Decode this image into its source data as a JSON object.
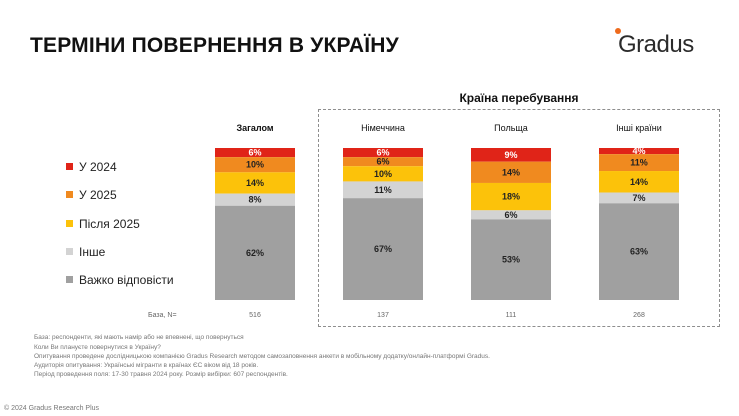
{
  "header": {
    "title": "ТЕРМІНИ ПОВЕРНЕННЯ В УКРАЇНУ",
    "logo_text": "Gradus"
  },
  "group_title": "Країна перебування",
  "legend": [
    {
      "label": "У 2024",
      "color": "#e02418"
    },
    {
      "label": "У 2025",
      "color": "#f08a1f"
    },
    {
      "label": "Після 2025",
      "color": "#fcc20a"
    },
    {
      "label": "Інше",
      "color": "#d3d3d3"
    },
    {
      "label": "Важко відповісти",
      "color": "#a0a0a0"
    }
  ],
  "chart_data": {
    "type": "bar",
    "stacked": true,
    "orientation": "vertical",
    "categories": [
      "Загалом",
      "Німеччина",
      "Польща",
      "Інші країни"
    ],
    "series": [
      {
        "name": "У 2024",
        "color": "#e02418",
        "values": [
          6,
          6,
          9,
          4
        ],
        "labels": [
          "6%",
          "6%",
          "9%",
          "4%"
        ]
      },
      {
        "name": "У 2025",
        "color": "#f08a1f",
        "values": [
          10,
          6,
          14,
          11
        ],
        "labels": [
          "10%",
          "6%",
          "14%",
          "11%"
        ]
      },
      {
        "name": "Після 2025",
        "color": "#fcc20a",
        "values": [
          14,
          10,
          18,
          14
        ],
        "labels": [
          "14%",
          "10%",
          "18%",
          "14%"
        ]
      },
      {
        "name": "Інше",
        "color": "#d3d3d3",
        "values": [
          8,
          11,
          6,
          7
        ],
        "labels": [
          "8%",
          "11%",
          "6%",
          "7%"
        ]
      },
      {
        "name": "Важко відповісти",
        "color": "#a0a0a0",
        "values": [
          62,
          67,
          53,
          63
        ],
        "labels": [
          "62%",
          "67%",
          "53%",
          "63%"
        ]
      }
    ],
    "ylim": [
      0,
      100
    ],
    "base_label": "База, N=",
    "base_values": [
      "516",
      "137",
      "111",
      "268"
    ],
    "legend_position": "left"
  },
  "notes": [
    "База: респонденти, які мають намір або не впевнені, що повернуться",
    "Коли Ви плануєте повернутися в Україну?",
    "Опитування проведене дослідницькою компанією Gradus Research методом самозаповнення анкети в мобільному додатку/онлайн-платформі Gradus.",
    "Аудиторія опитування: Українські мігранти в країнах ЄС віком від 18 років.",
    "Період проведення поля: 17-30 травня 2024 року. Розмір вибірки: 607 респондентів."
  ],
  "copyright": "© 2024 Gradus Research Plus"
}
